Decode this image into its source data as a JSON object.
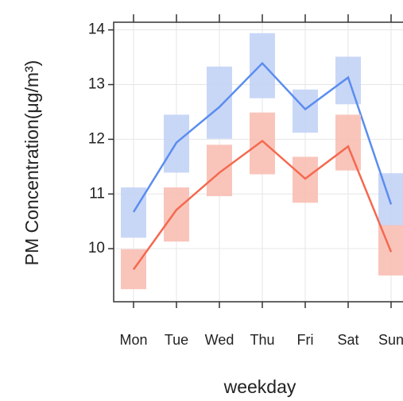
{
  "chart_data": {
    "type": "line",
    "x_label": "weekday",
    "y_label": "PM Concentration(μg/m³)",
    "categories": [
      "Mon",
      "Tue",
      "Wed",
      "Thu",
      "Fri",
      "Sat",
      "Sun"
    ],
    "series": [
      {
        "color": "#5b8def",
        "band_color": "#c3d3f6",
        "values": [
          10.67,
          11.94,
          12.59,
          13.39,
          12.55,
          13.13,
          10.81
        ],
        "lower": [
          10.2,
          11.39,
          12.01,
          12.75,
          12.12,
          12.64,
          10.41
        ],
        "upper": [
          11.12,
          12.45,
          13.33,
          13.94,
          12.91,
          13.51,
          11.38
        ]
      },
      {
        "color": "#f4694f",
        "band_color": "#f8bfb4",
        "values": [
          9.62,
          10.71,
          11.39,
          11.97,
          11.28,
          11.87,
          9.94
        ],
        "lower": [
          9.26,
          10.13,
          10.96,
          11.36,
          10.84,
          11.43,
          9.51
        ],
        "upper": [
          9.99,
          11.12,
          11.9,
          12.49,
          11.68,
          12.45,
          10.43
        ]
      }
    ],
    "ylim": [
      9.03,
      14.14
    ],
    "yticks": [
      10,
      11,
      12,
      13,
      14
    ],
    "grid": true
  }
}
